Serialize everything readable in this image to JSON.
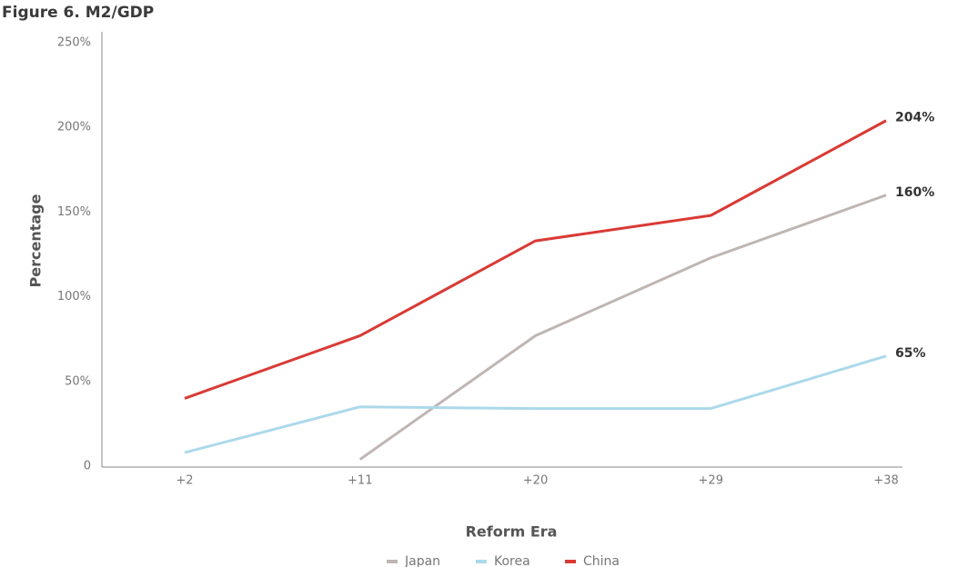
{
  "chart_data": {
    "type": "line",
    "title": "Figure 6. M2/GDP",
    "x_label": "Reform Era",
    "y_label": "Percentage",
    "categories": [
      "+2",
      "+11",
      "+20",
      "+29",
      "+38"
    ],
    "series": [
      {
        "name": "Japan",
        "color": "#bfb5b3",
        "values": [
          null,
          4,
          77,
          123,
          160
        ],
        "value_labels": [
          null,
          null,
          null,
          null,
          "160%"
        ]
      },
      {
        "name": "Korea",
        "color": "#acd9eb",
        "values": [
          8,
          35,
          34,
          34,
          65
        ],
        "value_labels": [
          null,
          null,
          null,
          null,
          "65%"
        ]
      },
      {
        "name": "China",
        "color": "#d93a35",
        "values": [
          40,
          77,
          133,
          148,
          204
        ],
        "value_labels": [
          null,
          null,
          null,
          null,
          "204%"
        ]
      }
    ],
    "ylim": [
      0,
      250
    ],
    "yticks": [
      0,
      {
        "value": 50,
        "label": "50%"
      },
      {
        "value": 100,
        "label": "100%"
      },
      {
        "value": 150,
        "label": "150%"
      },
      {
        "value": 200,
        "label": "200%"
      },
      {
        "value": 250,
        "label": "250%"
      }
    ],
    "grid": false
  }
}
